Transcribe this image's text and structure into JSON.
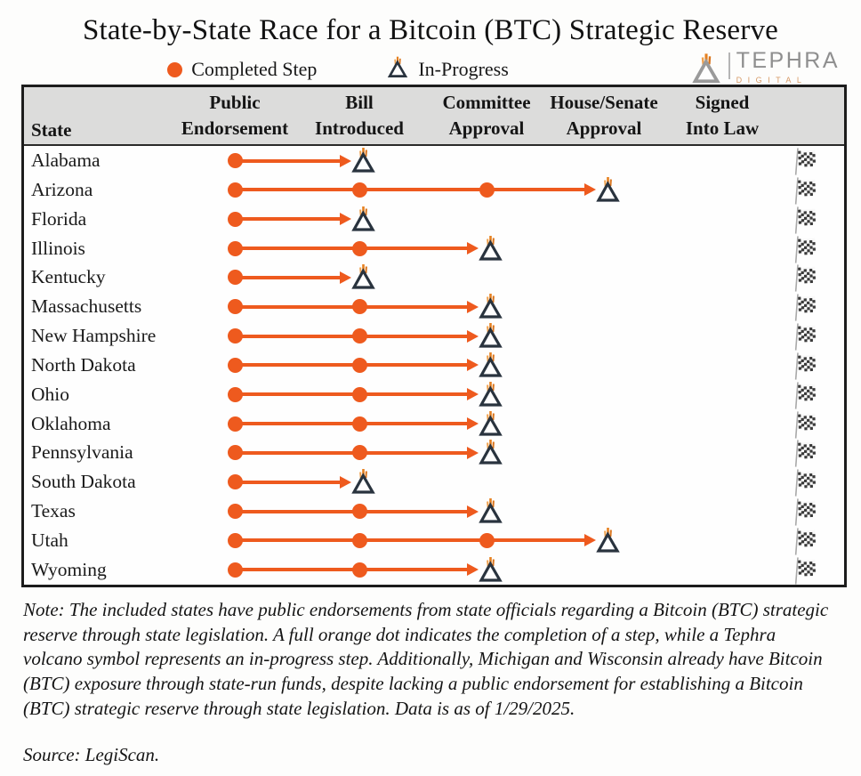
{
  "title": "State-by-State Race for a Bitcoin (BTC) Strategic Reserve",
  "legend": {
    "completed_label": "Completed Step",
    "in_progress_label": "In-Progress"
  },
  "brand": {
    "name": "TEPHRA",
    "sub": "DIGITAL"
  },
  "table": {
    "state_header": "State",
    "step_headers": [
      [
        "Public",
        "Endorsement"
      ],
      [
        "Bill",
        "Introduced"
      ],
      [
        "Committee",
        "Approval"
      ],
      [
        "House/Senate",
        "Approval"
      ],
      [
        "Signed",
        "Into Law"
      ]
    ]
  },
  "chart_data": {
    "type": "table",
    "title": "State-by-State Race for a Bitcoin (BTC) Strategic Reserve",
    "steps": [
      "Public Endorsement",
      "Bill Introduced",
      "Committee Approval",
      "House/Senate Approval",
      "Signed Into Law"
    ],
    "rows": [
      {
        "state": "Alabama",
        "completed": [
          "Public Endorsement"
        ],
        "in_progress": "Bill Introduced"
      },
      {
        "state": "Arizona",
        "completed": [
          "Public Endorsement",
          "Bill Introduced",
          "Committee Approval"
        ],
        "in_progress": "House/Senate Approval"
      },
      {
        "state": "Florida",
        "completed": [
          "Public Endorsement"
        ],
        "in_progress": "Bill Introduced"
      },
      {
        "state": "Illinois",
        "completed": [
          "Public Endorsement",
          "Bill Introduced"
        ],
        "in_progress": "Committee Approval"
      },
      {
        "state": "Kentucky",
        "completed": [
          "Public Endorsement"
        ],
        "in_progress": "Bill Introduced"
      },
      {
        "state": "Massachusetts",
        "completed": [
          "Public Endorsement",
          "Bill Introduced"
        ],
        "in_progress": "Committee Approval"
      },
      {
        "state": "New Hampshire",
        "completed": [
          "Public Endorsement",
          "Bill Introduced"
        ],
        "in_progress": "Committee Approval"
      },
      {
        "state": "North Dakota",
        "completed": [
          "Public Endorsement",
          "Bill Introduced"
        ],
        "in_progress": "Committee Approval"
      },
      {
        "state": "Ohio",
        "completed": [
          "Public Endorsement",
          "Bill Introduced"
        ],
        "in_progress": "Committee Approval"
      },
      {
        "state": "Oklahoma",
        "completed": [
          "Public Endorsement",
          "Bill Introduced"
        ],
        "in_progress": "Committee Approval"
      },
      {
        "state": "Pennsylvania",
        "completed": [
          "Public Endorsement",
          "Bill Introduced"
        ],
        "in_progress": "Committee Approval"
      },
      {
        "state": "South Dakota",
        "completed": [
          "Public Endorsement"
        ],
        "in_progress": "Bill Introduced"
      },
      {
        "state": "Texas",
        "completed": [
          "Public Endorsement",
          "Bill Introduced"
        ],
        "in_progress": "Committee Approval"
      },
      {
        "state": "Utah",
        "completed": [
          "Public Endorsement",
          "Bill Introduced",
          "Committee Approval"
        ],
        "in_progress": "House/Senate Approval"
      },
      {
        "state": "Wyoming",
        "completed": [
          "Public Endorsement",
          "Bill Introduced"
        ],
        "in_progress": "Committee Approval"
      }
    ]
  },
  "footer": {
    "note": "Note: The included states have public endorsements from state officials regarding a Bitcoin (BTC) strategic reserve through state legislation. A full orange dot indicates the completion of a step, while a Tephra volcano symbol represents an in-progress step. Additionally, Michigan and Wisconsin already have Bitcoin (BTC) exposure through state-run funds, despite lacking a public endorsement for establishing a Bitcoin (BTC) strategic reserve through state legislation. Data is as of 1/29/2025.",
    "source": "Source: LegiScan."
  },
  "colors": {
    "orange": "#EE5A1E",
    "volcano_outline": "#29333E",
    "header_bg": "#DCDCDB",
    "flag_pole": "#A9A9A9",
    "brand_gray": "#8F8F8F",
    "brand_orange": "#D79A66"
  }
}
